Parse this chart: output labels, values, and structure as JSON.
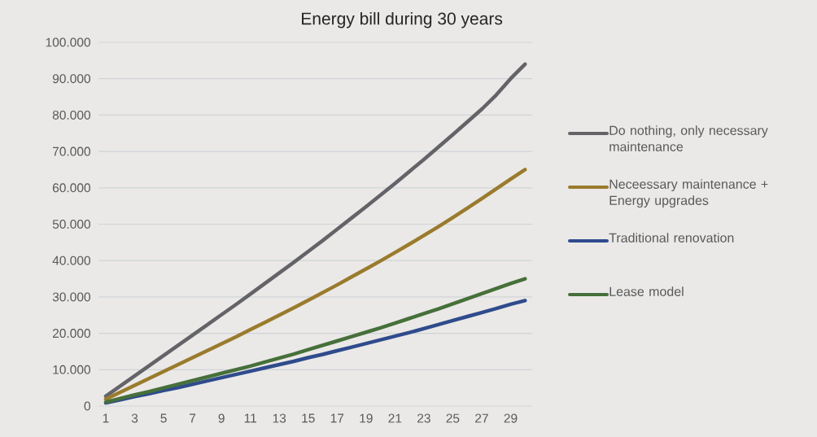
{
  "chart_data": {
    "type": "line",
    "title": "Energy bill during 30 years",
    "categories": [
      "1",
      null,
      "3",
      null,
      "5",
      null,
      "7",
      null,
      "9",
      null,
      "11",
      null,
      "13",
      null,
      "15",
      null,
      "17",
      null,
      "19",
      null,
      "21",
      null,
      "23",
      null,
      "25",
      null,
      "27",
      null,
      "29",
      null
    ],
    "ylim": [
      0,
      100000
    ],
    "yticks": [
      {
        "value": 0,
        "label": "0"
      },
      {
        "value": 10000,
        "label": "10.000"
      },
      {
        "value": 20000,
        "label": "20.000"
      },
      {
        "value": 30000,
        "label": "30.000"
      },
      {
        "value": 40000,
        "label": "40.000"
      },
      {
        "value": 50000,
        "label": "50.000"
      },
      {
        "value": 60000,
        "label": "60.000"
      },
      {
        "value": 70000,
        "label": "70.000"
      },
      {
        "value": 80000,
        "label": "80.000"
      },
      {
        "value": 90000,
        "label": "90.000"
      },
      {
        "value": 100000,
        "label": "100.000"
      }
    ],
    "grid": "y",
    "legend": "right",
    "marker": "none",
    "line_style": "solid",
    "series": [
      {
        "name": "Do nothing, only necessary maintenance",
        "color": "#636368",
        "values": [
          2700,
          5500,
          8300,
          11100,
          13900,
          16700,
          19500,
          22300,
          25100,
          27900,
          30800,
          33700,
          36600,
          39500,
          42500,
          45500,
          48600,
          51700,
          54800,
          58000,
          61200,
          64500,
          67800,
          71200,
          74600,
          78100,
          81600,
          85500,
          90000,
          94000
        ]
      },
      {
        "name": "Neceessary maintenance + Energy upgrades",
        "color": "#9a7b2d",
        "values": [
          1900,
          3800,
          5700,
          7600,
          9500,
          11400,
          13300,
          15200,
          17100,
          19000,
          21000,
          23000,
          25000,
          27000,
          29100,
          31200,
          33300,
          35500,
          37700,
          39900,
          42200,
          44500,
          46900,
          49300,
          51800,
          54400,
          57000,
          59700,
          62400,
          65000
        ]
      },
      {
        "name": "Traditional renovation",
        "color": "#2f4b8c",
        "values": [
          900,
          1700,
          2600,
          3400,
          4300,
          5100,
          6000,
          6900,
          7800,
          8700,
          9600,
          10500,
          11400,
          12300,
          13300,
          14200,
          15200,
          16200,
          17200,
          18200,
          19200,
          20200,
          21300,
          22400,
          23500,
          24600,
          25700,
          26800,
          28000,
          29000
        ]
      },
      {
        "name": "Lease model",
        "color": "#46703a",
        "values": [
          1100,
          2100,
          3100,
          4000,
          5000,
          6000,
          7000,
          8000,
          9000,
          10000,
          11000,
          12100,
          13200,
          14300,
          15500,
          16700,
          17900,
          19100,
          20300,
          21500,
          22800,
          24100,
          25400,
          26700,
          28100,
          29500,
          30900,
          32300,
          33700,
          35000
        ]
      }
    ]
  }
}
